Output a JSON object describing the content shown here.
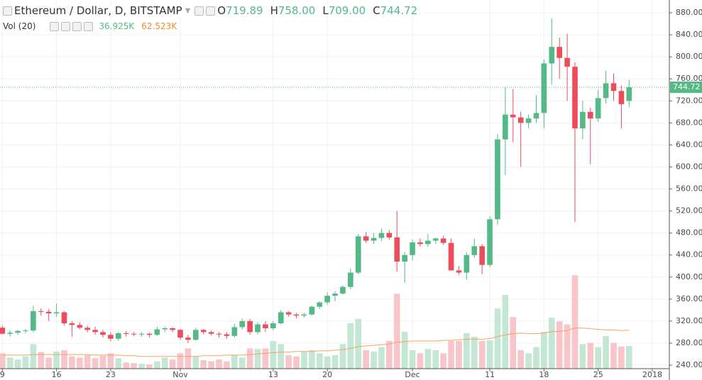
{
  "chart_data": {
    "type": "candlestick",
    "legend": {
      "title": "Ethereum / Dollar, D, BITSTAMP",
      "ohlc": [
        {
          "key": "O",
          "value_label": "719.89"
        },
        {
          "key": "H",
          "value_label": "758.00"
        },
        {
          "key": "L",
          "value_label": "709.00"
        },
        {
          "key": "C",
          "value_label": "744.72"
        }
      ],
      "volume_title": "Vol (20)",
      "volume_label": "36.925K",
      "volume_ma_label": "62.523K"
    },
    "price_label": "744.72",
    "up_color": "#53b987",
    "down_color": "#eb4d5c",
    "volume_up_color": "#c4e6d4",
    "volume_down_color": "#f7c5ca",
    "volume_ma_color": "#f4a460",
    "grid": true,
    "xlim": [
      -0.3,
      86.2
    ],
    "xticks": [
      {
        "value": 0,
        "label": "9"
      },
      {
        "value": 7,
        "label": "16"
      },
      {
        "value": 14,
        "label": "23"
      },
      {
        "value": 23,
        "label": "Nov"
      },
      {
        "value": 35,
        "label": "13"
      },
      {
        "value": 42,
        "label": "20"
      },
      {
        "value": 53,
        "label": "Dec"
      },
      {
        "value": 63,
        "label": "11"
      },
      {
        "value": 70,
        "label": "18"
      },
      {
        "value": 77,
        "label": "25"
      },
      {
        "value": 84,
        "label": "2018"
      }
    ],
    "ylim": [
      233.6,
      903.2
    ],
    "yticks": [
      {
        "value": 240,
        "label": "240.00"
      },
      {
        "value": 280,
        "label": "280.00"
      },
      {
        "value": 320,
        "label": "320.00"
      },
      {
        "value": 360,
        "label": "360.00"
      },
      {
        "value": 400,
        "label": "400.00"
      },
      {
        "value": 440,
        "label": "440.00"
      },
      {
        "value": 480,
        "label": "480.00"
      },
      {
        "value": 520,
        "label": "520.00"
      },
      {
        "value": 560,
        "label": "560.00"
      },
      {
        "value": 600,
        "label": "600.00"
      },
      {
        "value": 640,
        "label": "640.00"
      },
      {
        "value": 680,
        "label": "680.00"
      },
      {
        "value": 720,
        "label": "720.00"
      },
      {
        "value": 760,
        "label": "760.00"
      },
      {
        "value": 800,
        "label": "800.00"
      },
      {
        "value": 840,
        "label": "840.00"
      },
      {
        "value": 880,
        "label": "880.00"
      }
    ],
    "y2lim": [
      0,
      600
    ],
    "ohlc": {
      "open": [
        308,
        297,
        299,
        302,
        303,
        338,
        337,
        334,
        336,
        316,
        313,
        308,
        304,
        300,
        295,
        288,
        298,
        297,
        296,
        297,
        295,
        305,
        307,
        304,
        290,
        286,
        304,
        300,
        297,
        296,
        293,
        309,
        320,
        300,
        314,
        307,
        316,
        336,
        332,
        330,
        332,
        346,
        354,
        366,
        370,
        382,
        408,
        474,
        466,
        471,
        480,
        472,
        428,
        440,
        463,
        460,
        466,
        470,
        462,
        412,
        408,
        440,
        456,
        422,
        505,
        650,
        695,
        690,
        680,
        688,
        698,
        788,
        818,
        798,
        782,
        670,
        700,
        688,
        725,
        752,
        738,
        719.89
      ],
      "high": [
        312,
        303,
        304,
        306,
        348,
        343,
        342,
        352,
        338,
        320,
        318,
        312,
        310,
        304,
        300,
        300,
        302,
        300,
        300,
        299,
        310,
        310,
        309,
        306,
        295,
        308,
        306,
        303,
        300,
        300,
        315,
        325,
        324,
        318,
        320,
        320,
        340,
        338,
        335,
        335,
        348,
        356,
        372,
        374,
        385,
        415,
        478,
        482,
        480,
        488,
        485,
        520,
        445,
        468,
        470,
        478,
        472,
        475,
        470,
        420,
        445,
        470,
        460,
        510,
        660,
        745,
        742,
        700,
        695,
        730,
        795,
        870,
        835,
        842,
        790,
        720,
        708,
        740,
        775,
        770,
        748,
        758
      ],
      "low": [
        296,
        292,
        295,
        298,
        300,
        330,
        320,
        328,
        312,
        292,
        305,
        300,
        295,
        290,
        283,
        284,
        292,
        293,
        292,
        290,
        293,
        300,
        300,
        286,
        280,
        284,
        296,
        294,
        290,
        288,
        290,
        305,
        295,
        296,
        300,
        303,
        314,
        328,
        325,
        326,
        330,
        342,
        350,
        356,
        368,
        378,
        405,
        462,
        460,
        465,
        468,
        410,
        390,
        430,
        455,
        455,
        460,
        458,
        420,
        404,
        395,
        435,
        405,
        418,
        495,
        585,
        645,
        600,
        670,
        680,
        670,
        750,
        760,
        720,
        500,
        650,
        605,
        682,
        715,
        720,
        670,
        709
      ],
      "close": [
        297,
        299,
        302,
        303,
        338,
        337,
        334,
        336,
        316,
        313,
        308,
        304,
        300,
        295,
        288,
        298,
        297,
        296,
        297,
        295,
        305,
        307,
        304,
        290,
        286,
        304,
        300,
        297,
        296,
        293,
        309,
        320,
        300,
        314,
        307,
        316,
        336,
        332,
        330,
        332,
        346,
        354,
        366,
        370,
        382,
        408,
        474,
        466,
        471,
        480,
        472,
        428,
        440,
        463,
        460,
        466,
        470,
        462,
        412,
        408,
        440,
        456,
        422,
        505,
        650,
        695,
        690,
        680,
        688,
        698,
        788,
        818,
        798,
        782,
        670,
        700,
        688,
        725,
        752,
        738,
        714,
        744.72
      ]
    },
    "volume": [
      25,
      18,
      15,
      20,
      40,
      27,
      18,
      28,
      30,
      20,
      18,
      22,
      17,
      21,
      25,
      17,
      10,
      9,
      8,
      7,
      12,
      18,
      15,
      25,
      33,
      20,
      14,
      12,
      15,
      12,
      22,
      18,
      33,
      32,
      33,
      45,
      40,
      22,
      20,
      28,
      30,
      25,
      20,
      22,
      40,
      74,
      81,
      30,
      28,
      35,
      45,
      122,
      60,
      30,
      25,
      32,
      30,
      25,
      45,
      45,
      58,
      52,
      45,
      46,
      98,
      120,
      84,
      30,
      25,
      35,
      60,
      83,
      77,
      72,
      152,
      40,
      42,
      35,
      53,
      42,
      36,
      36.925
    ],
    "volume_ma": [
      22,
      22,
      22,
      22,
      23,
      23,
      23,
      23,
      23,
      23,
      23,
      23,
      22,
      22,
      22,
      22,
      21,
      21,
      20,
      20,
      20,
      20,
      20,
      20,
      20,
      20,
      21,
      21,
      21,
      22,
      22,
      22,
      23,
      24,
      25,
      26,
      27,
      27,
      28,
      28,
      28,
      29,
      29,
      30,
      31,
      33,
      36,
      37,
      38,
      39,
      40,
      43,
      44,
      45,
      45,
      45,
      45,
      46,
      46,
      47,
      48,
      48,
      48,
      49,
      52,
      55,
      57,
      58,
      57,
      57,
      58,
      60,
      61,
      62,
      66,
      66,
      65,
      64,
      63,
      63,
      62,
      62.523
    ]
  }
}
